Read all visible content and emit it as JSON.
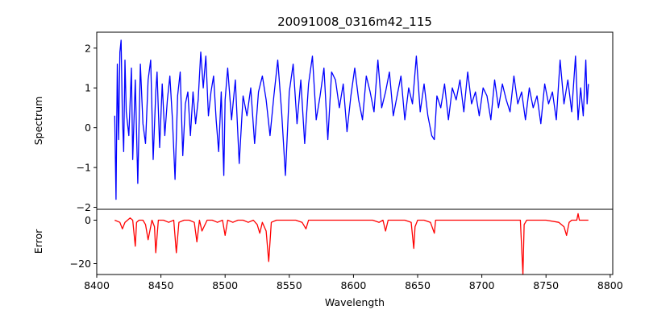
{
  "chart_data": [
    {
      "type": "line",
      "panel": "spectrum",
      "title": "20091008_0316m42_115",
      "ylabel": "Spectrum",
      "xlabel": "",
      "xlim": [
        8400,
        8802
      ],
      "ylim": [
        -2.05,
        2.4
      ],
      "yticks": [
        2,
        1,
        0,
        -1,
        -2
      ],
      "ytick_labels": [
        "2",
        "1",
        "0",
        "−1",
        "−2"
      ],
      "series": [
        {
          "color": "#0000ff",
          "x": [
            8414,
            8415,
            8416,
            8417,
            8418,
            8419,
            8420,
            8421,
            8422,
            8423,
            8425,
            8427,
            8428,
            8430,
            8432,
            8434,
            8436,
            8438,
            8440,
            8442,
            8444,
            8446,
            8447,
            8449,
            8451,
            8453,
            8455,
            8457,
            8459,
            8461,
            8463,
            8465,
            8467,
            8469,
            8471,
            8473,
            8475,
            8477,
            8479,
            8481,
            8483,
            8485,
            8487,
            8489,
            8491,
            8493,
            8495,
            8497,
            8499,
            8500,
            8502,
            8505,
            8508,
            8511,
            8514,
            8517,
            8520,
            8523,
            8526,
            8529,
            8532,
            8535,
            8538,
            8541,
            8544,
            8547,
            8550,
            8553,
            8556,
            8559,
            8562,
            8565,
            8568,
            8571,
            8574,
            8577,
            8580,
            8583,
            8586,
            8589,
            8592,
            8595,
            8598,
            8601,
            8604,
            8607,
            8610,
            8613,
            8616,
            8619,
            8622,
            8625,
            8628,
            8631,
            8634,
            8637,
            8640,
            8643,
            8646,
            8649,
            8652,
            8655,
            8658,
            8661,
            8663,
            8665,
            8668,
            8671,
            8674,
            8677,
            8680,
            8683,
            8686,
            8689,
            8692,
            8695,
            8698,
            8701,
            8704,
            8707,
            8710,
            8713,
            8716,
            8719,
            8722,
            8725,
            8728,
            8731,
            8734,
            8737,
            8740,
            8743,
            8746,
            8749,
            8752,
            8755,
            8758,
            8761,
            8764,
            8767,
            8770,
            8773,
            8775,
            8777,
            8779,
            8781,
            8782,
            8783
          ],
          "y": [
            0.3,
            -1.8,
            1.6,
            -0.3,
            1.9,
            2.2,
            0.3,
            -0.6,
            1.7,
            0.4,
            -0.2,
            1.5,
            -0.8,
            1.2,
            -1.4,
            1.6,
            0.1,
            -0.4,
            1.2,
            1.7,
            -0.8,
            0.9,
            1.4,
            -0.5,
            1.1,
            -0.2,
            0.7,
            1.3,
            0.2,
            -1.3,
            0.8,
            1.4,
            -0.7,
            0.6,
            0.9,
            -0.2,
            0.9,
            0.1,
            0.7,
            1.9,
            1.0,
            1.8,
            0.3,
            0.9,
            1.3,
            0.2,
            -0.6,
            0.9,
            -1.2,
            0.7,
            1.5,
            0.2,
            1.2,
            -0.9,
            0.8,
            0.3,
            1.0,
            -0.4,
            0.9,
            1.3,
            0.7,
            -0.2,
            0.8,
            1.7,
            0.4,
            -1.2,
            0.9,
            1.6,
            0.1,
            1.2,
            -0.4,
            1.1,
            1.8,
            0.2,
            0.8,
            1.5,
            -0.3,
            1.4,
            1.2,
            0.5,
            1.1,
            -0.1,
            0.8,
            1.5,
            0.7,
            0.2,
            1.3,
            0.9,
            0.4,
            1.7,
            0.5,
            0.9,
            1.4,
            0.3,
            0.8,
            1.3,
            0.2,
            1.0,
            0.6,
            1.8,
            0.4,
            1.1,
            0.3,
            -0.2,
            -0.3,
            0.8,
            0.5,
            1.1,
            0.2,
            1.0,
            0.7,
            1.2,
            0.4,
            1.4,
            0.6,
            0.9,
            0.3,
            1.0,
            0.8,
            0.2,
            1.2,
            0.5,
            1.1,
            0.7,
            0.4,
            1.3,
            0.6,
            0.9,
            0.2,
            1.0,
            0.5,
            0.8,
            0.1,
            1.1,
            0.6,
            0.9,
            0.2,
            1.7,
            0.6,
            1.2,
            0.4,
            1.8,
            0.2,
            1.0,
            0.3,
            1.7,
            0.6,
            1.1
          ],
          "x_note_units": "Wavelength"
        }
      ]
    },
    {
      "type": "line",
      "panel": "error",
      "title": "",
      "ylabel": "Error",
      "xlabel": "Wavelength",
      "xlim": [
        8400,
        8802
      ],
      "ylim": [
        -25,
        5
      ],
      "yticks": [
        0,
        -20
      ],
      "ytick_labels": [
        "0",
        "−20"
      ],
      "xticks": [
        8400,
        8450,
        8500,
        8550,
        8600,
        8650,
        8700,
        8750,
        8800
      ],
      "xtick_labels": [
        "8400",
        "8450",
        "8500",
        "8550",
        "8600",
        "8650",
        "8700",
        "8750",
        "8800"
      ],
      "series": [
        {
          "color": "#ff0000",
          "x": [
            8414,
            8418,
            8420,
            8422,
            8424,
            8426,
            8428,
            8430,
            8431,
            8433,
            8436,
            8438,
            8440,
            8443,
            8445,
            8446,
            8448,
            8452,
            8456,
            8460,
            8462,
            8464,
            8468,
            8472,
            8476,
            8478,
            8480,
            8482,
            8486,
            8490,
            8494,
            8498,
            8500,
            8502,
            8506,
            8510,
            8514,
            8518,
            8522,
            8525,
            8527,
            8529,
            8532,
            8534,
            8536,
            8540,
            8545,
            8550,
            8555,
            8560,
            8563,
            8565,
            8570,
            8575,
            8580,
            8585,
            8590,
            8595,
            8600,
            8605,
            8610,
            8615,
            8620,
            8623,
            8625,
            8627,
            8630,
            8635,
            8640,
            8645,
            8647,
            8648,
            8650,
            8655,
            8660,
            8663,
            8664,
            8666,
            8670,
            8680,
            8690,
            8700,
            8710,
            8720,
            8730,
            8732,
            8733,
            8735,
            8740,
            8750,
            8760,
            8764,
            8766,
            8768,
            8770,
            8772,
            8774,
            8775,
            8776,
            8778,
            8783
          ],
          "y": [
            0,
            -1,
            -4,
            -1,
            0,
            1,
            0,
            -12,
            -1,
            0,
            0,
            -2,
            -9,
            0,
            -3,
            -15,
            0,
            0,
            -1,
            0,
            -15,
            -1,
            0,
            0,
            -1,
            -10,
            0,
            -5,
            0,
            0,
            -1,
            0,
            -7,
            0,
            -1,
            0,
            0,
            -1,
            0,
            -2,
            -6,
            -1,
            -5,
            -19,
            -1,
            0,
            0,
            0,
            0,
            -1,
            -4,
            0,
            0,
            0,
            0,
            0,
            0,
            0,
            0,
            0,
            0,
            0,
            -1,
            0,
            -5,
            0,
            0,
            0,
            0,
            -1,
            -13,
            -3,
            0,
            0,
            -1,
            -6,
            0,
            0,
            0,
            0,
            0,
            0,
            0,
            0,
            0,
            -25,
            -2,
            0,
            0,
            0,
            -1,
            -3,
            -7,
            -1,
            0,
            0,
            0,
            3,
            0,
            0,
            0
          ]
        }
      ]
    }
  ]
}
